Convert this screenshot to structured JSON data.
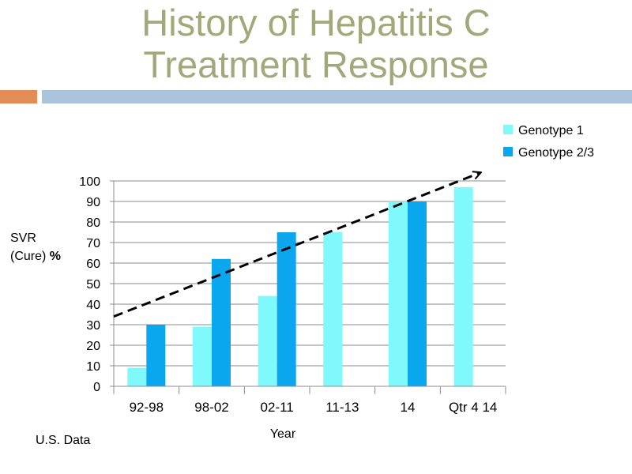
{
  "slide": {
    "title_line1": "History of Hepatitis C",
    "title_line2": "Treatment Response",
    "footer_note": "U.S. Data"
  },
  "colors": {
    "title": "#a3a87a",
    "accent_orange": "#e38c55",
    "accent_blue": "#a9c4db",
    "genotype1": "#7ff9fb",
    "genotype23": "#0aa6ee",
    "grid": "#8c8c8c"
  },
  "chart_data": {
    "type": "bar",
    "categories": [
      "92-98",
      "98-02",
      "02-11",
      "11-13",
      "14",
      "Qtr 4 14"
    ],
    "series": [
      {
        "name": "Genotype 1",
        "values": [
          9,
          29,
          44,
          75,
          90,
          97
        ]
      },
      {
        "name": "Genotype 2/3",
        "values": [
          30,
          62,
          75,
          null,
          90,
          null
        ]
      }
    ],
    "xlabel": "Year",
    "ylabel_line1": "SVR",
    "ylabel_line2": "(Cure) %",
    "ylim": [
      0,
      100
    ],
    "yticks": [
      0,
      10,
      20,
      30,
      40,
      50,
      60,
      70,
      80,
      90,
      100
    ],
    "grid": true,
    "legend": "top-right",
    "trend_arrow": {
      "from": [
        0,
        34
      ],
      "to": [
        6,
        104
      ],
      "style": "dashed"
    }
  }
}
